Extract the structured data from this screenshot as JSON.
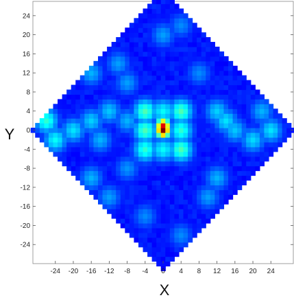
{
  "chart_data": {
    "type": "heatmap",
    "title": "",
    "xlabel": "X",
    "ylabel": "Y",
    "xlim": [
      -29,
      29
    ],
    "ylim": [
      -28,
      27
    ],
    "xticks": [
      -24,
      -20,
      -16,
      -12,
      -8,
      -4,
      0,
      4,
      8,
      12,
      16,
      20,
      24
    ],
    "yticks": [
      24,
      20,
      16,
      12,
      8,
      4,
      0,
      -4,
      -8,
      -12,
      -16,
      -20,
      -24
    ],
    "grid": false,
    "legend": "none",
    "colormap": "jet",
    "color_range": [
      0,
      1
    ],
    "background_value": 0.12,
    "region": "diamond |x|+|y|<=29",
    "hotspots": [
      {
        "x": 0,
        "y": 0,
        "value": 1.0
      },
      {
        "x": 0,
        "y": 1,
        "value": 0.9
      },
      {
        "x": -4,
        "y": 4,
        "value": 0.45
      },
      {
        "x": 4,
        "y": 4,
        "value": 0.45
      },
      {
        "x": -4,
        "y": 0,
        "value": 0.45
      },
      {
        "x": 4,
        "y": 0,
        "value": 0.42
      },
      {
        "x": -4,
        "y": -4,
        "value": 0.42
      },
      {
        "x": 4,
        "y": -4,
        "value": 0.45
      },
      {
        "x": 0,
        "y": 4,
        "value": 0.38
      },
      {
        "x": 0,
        "y": -4,
        "value": 0.38
      },
      {
        "x": -26,
        "y": 2,
        "value": 0.42
      },
      {
        "x": -24,
        "y": -2,
        "value": 0.38
      },
      {
        "x": -20,
        "y": 0,
        "value": 0.35
      },
      {
        "x": -16,
        "y": 2,
        "value": 0.33
      },
      {
        "x": -12,
        "y": 4,
        "value": 0.32
      },
      {
        "x": -14,
        "y": -2,
        "value": 0.3
      },
      {
        "x": -8,
        "y": 2,
        "value": 0.3
      },
      {
        "x": 12,
        "y": 4,
        "value": 0.33
      },
      {
        "x": 14,
        "y": 2,
        "value": 0.35
      },
      {
        "x": 16,
        "y": 0,
        "value": 0.32
      },
      {
        "x": 20,
        "y": -2,
        "value": 0.34
      },
      {
        "x": 24,
        "y": 0,
        "value": 0.35
      },
      {
        "x": 22,
        "y": 4,
        "value": 0.3
      },
      {
        "x": -16,
        "y": 12,
        "value": 0.3
      },
      {
        "x": -10,
        "y": 14,
        "value": 0.28
      },
      {
        "x": -8,
        "y": 10,
        "value": 0.28
      },
      {
        "x": 0,
        "y": 20,
        "value": 0.28
      },
      {
        "x": 4,
        "y": 22,
        "value": 0.26
      },
      {
        "x": 8,
        "y": 12,
        "value": 0.26
      },
      {
        "x": -16,
        "y": -10,
        "value": 0.3
      },
      {
        "x": -12,
        "y": -14,
        "value": 0.28
      },
      {
        "x": -8,
        "y": -8,
        "value": 0.27
      },
      {
        "x": 12,
        "y": -10,
        "value": 0.3
      },
      {
        "x": 10,
        "y": -14,
        "value": 0.28
      },
      {
        "x": 4,
        "y": -22,
        "value": 0.26
      },
      {
        "x": -4,
        "y": -18,
        "value": 0.26
      }
    ]
  }
}
